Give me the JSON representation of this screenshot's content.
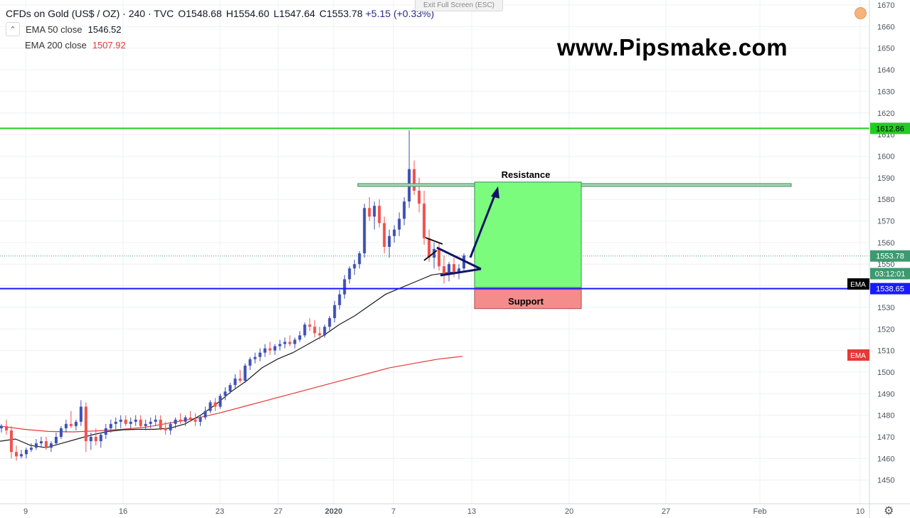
{
  "header": {
    "symbol_title": "CFDs on Gold (US$ / OZ) · 240 · TVC",
    "ohlc": [
      {
        "label": "O",
        "value": "1548.68"
      },
      {
        "label": "H",
        "value": "1554.60"
      },
      {
        "label": "L",
        "value": "1547.64"
      },
      {
        "label": "C",
        "value": "1553.78"
      }
    ],
    "change": "+5.15 (+0.33%)",
    "exit_fullscreen": "Exit Full Screen (ESC)",
    "collapse_icon": "chevron-up-icon",
    "indicators": [
      {
        "label": "EMA 50 close",
        "value": "1546.52",
        "color": "#131722"
      },
      {
        "label": "EMA 200 close",
        "value": "1507.92",
        "color": "#e53935"
      }
    ]
  },
  "watermark": "www.Pipsmake.com",
  "colors": {
    "up": "#3f51b5",
    "down": "#ef5350",
    "ema50": "#1a1a1a",
    "ema200": "#e53935",
    "resistance_line": "#22cc22",
    "support_line": "#1a1aff",
    "target_box": "#7cfc7c",
    "stop_box": "#f48c8c",
    "annotation": "#131366"
  },
  "chart_data": {
    "type": "candlestick",
    "title": "CFDs on Gold (US$ / OZ)",
    "timeframe": "240",
    "ylim": [
      1444,
      1672
    ],
    "y_ticks": [
      1450,
      1460,
      1470,
      1480,
      1490,
      1500,
      1510,
      1520,
      1530,
      1540,
      1550,
      1560,
      1570,
      1580,
      1590,
      1600,
      1610,
      1620,
      1630,
      1640,
      1650,
      1660,
      1670
    ],
    "x_ticks": [
      "9",
      "16",
      "23",
      "27",
      "2020",
      "7",
      "13",
      "20",
      "27",
      "Feb",
      "10"
    ],
    "price_labels": [
      {
        "text": "1612.86",
        "value": 1612.86,
        "bg": "#22cc22",
        "fg": "#000000"
      },
      {
        "text": "1553.78",
        "value": 1553.78,
        "bg": "#3d9a70",
        "fg": "#ffffff"
      },
      {
        "text": "03:12:01",
        "value": 1545.6,
        "bg": "#3d9a70",
        "fg": "#ffffff"
      },
      {
        "text": "1538.65",
        "value": 1538.65,
        "bg": "#1a1aff",
        "fg": "#ffffff"
      }
    ],
    "ema_tags": [
      {
        "text": "EMA",
        "value": 1540.8,
        "bg": "#000000"
      },
      {
        "text": "EMA",
        "value": 1507.9,
        "bg": "#e53935"
      }
    ],
    "horizontal_lines": [
      {
        "name": "resistance-line",
        "value": 1612.86
      },
      {
        "name": "support-line",
        "value": 1538.65
      },
      {
        "name": "last-price-line",
        "value": 1553.78
      }
    ],
    "annotations": {
      "resistance_label": "Resistance",
      "support_label": "Support",
      "resistance_zone": [
        1586.3,
        1587.3
      ],
      "target_box": [
        1539.2,
        1588.0
      ],
      "support_box": [
        1529.4,
        1538.3
      ]
    },
    "candles": [
      [
        1474,
        1476,
        1472,
        1475
      ],
      [
        1475,
        1478,
        1471,
        1473
      ],
      [
        1473,
        1475,
        1460,
        1463
      ],
      [
        1463,
        1466,
        1459,
        1461
      ],
      [
        1461,
        1464,
        1460,
        1462
      ],
      [
        1462,
        1465,
        1460,
        1464
      ],
      [
        1464,
        1467,
        1463,
        1465
      ],
      [
        1465,
        1469,
        1464,
        1467
      ],
      [
        1467,
        1470,
        1465,
        1468
      ],
      [
        1468,
        1470,
        1464,
        1465
      ],
      [
        1465,
        1468,
        1463,
        1467
      ],
      [
        1467,
        1472,
        1466,
        1470
      ],
      [
        1470,
        1475,
        1469,
        1474
      ],
      [
        1474,
        1478,
        1472,
        1476
      ],
      [
        1476,
        1482,
        1474,
        1475
      ],
      [
        1475,
        1478,
        1473,
        1477
      ],
      [
        1477,
        1487,
        1475,
        1484
      ],
      [
        1484,
        1486,
        1463,
        1468
      ],
      [
        1468,
        1472,
        1464,
        1470
      ],
      [
        1470,
        1474,
        1466,
        1468
      ],
      [
        1468,
        1472,
        1465,
        1471
      ],
      [
        1471,
        1476,
        1469,
        1474
      ],
      [
        1474,
        1478,
        1472,
        1476
      ],
      [
        1476,
        1479,
        1473,
        1477
      ],
      [
        1477,
        1480,
        1474,
        1478
      ],
      [
        1478,
        1480,
        1475,
        1476
      ],
      [
        1476,
        1479,
        1474,
        1477
      ],
      [
        1477,
        1480,
        1475,
        1478
      ],
      [
        1478,
        1480,
        1474,
        1475
      ],
      [
        1475,
        1478,
        1473,
        1476
      ],
      [
        1476,
        1479,
        1474,
        1477
      ],
      [
        1477,
        1480,
        1475,
        1478
      ],
      [
        1478,
        1480,
        1473,
        1474
      ],
      [
        1474,
        1477,
        1471,
        1473
      ],
      [
        1473,
        1477,
        1471,
        1476
      ],
      [
        1476,
        1479,
        1474,
        1478
      ],
      [
        1478,
        1481,
        1476,
        1477
      ],
      [
        1477,
        1480,
        1475,
        1479
      ],
      [
        1479,
        1482,
        1477,
        1478
      ],
      [
        1478,
        1481,
        1475,
        1477
      ],
      [
        1477,
        1480,
        1475,
        1479
      ],
      [
        1479,
        1484,
        1478,
        1482
      ],
      [
        1482,
        1487,
        1481,
        1486
      ],
      [
        1486,
        1488,
        1482,
        1484
      ],
      [
        1484,
        1490,
        1483,
        1489
      ],
      [
        1489,
        1493,
        1487,
        1491
      ],
      [
        1491,
        1495,
        1490,
        1494
      ],
      [
        1494,
        1499,
        1492,
        1497
      ],
      [
        1497,
        1501,
        1495,
        1496
      ],
      [
        1496,
        1504,
        1495,
        1503
      ],
      [
        1503,
        1507,
        1501,
        1506
      ],
      [
        1506,
        1509,
        1504,
        1507
      ],
      [
        1507,
        1511,
        1505,
        1509
      ],
      [
        1509,
        1513,
        1507,
        1511
      ],
      [
        1511,
        1514,
        1508,
        1510
      ],
      [
        1510,
        1513,
        1508,
        1512
      ],
      [
        1512,
        1515,
        1510,
        1513
      ],
      [
        1513,
        1516,
        1511,
        1514
      ],
      [
        1514,
        1517,
        1512,
        1513
      ],
      [
        1513,
        1516,
        1511,
        1515
      ],
      [
        1515,
        1519,
        1514,
        1517
      ],
      [
        1517,
        1523,
        1516,
        1522
      ],
      [
        1522,
        1525,
        1519,
        1521
      ],
      [
        1521,
        1524,
        1516,
        1518
      ],
      [
        1518,
        1521,
        1515,
        1517
      ],
      [
        1517,
        1522,
        1516,
        1521
      ],
      [
        1521,
        1526,
        1519,
        1525
      ],
      [
        1525,
        1533,
        1523,
        1531
      ],
      [
        1531,
        1538,
        1529,
        1536
      ],
      [
        1536,
        1545,
        1534,
        1543
      ],
      [
        1543,
        1549,
        1541,
        1548
      ],
      [
        1548,
        1552,
        1545,
        1550
      ],
      [
        1550,
        1556,
        1548,
        1555
      ],
      [
        1555,
        1578,
        1553,
        1576
      ],
      [
        1576,
        1581,
        1570,
        1572
      ],
      [
        1572,
        1579,
        1566,
        1577
      ],
      [
        1577,
        1580,
        1567,
        1569
      ],
      [
        1569,
        1572,
        1555,
        1558
      ],
      [
        1558,
        1566,
        1553,
        1563
      ],
      [
        1563,
        1568,
        1560,
        1566
      ],
      [
        1566,
        1574,
        1563,
        1571
      ],
      [
        1571,
        1581,
        1568,
        1579
      ],
      [
        1579,
        1612,
        1576,
        1594
      ],
      [
        1594,
        1598,
        1582,
        1584
      ],
      [
        1584,
        1590,
        1574,
        1578
      ],
      [
        1578,
        1584,
        1559,
        1562
      ],
      [
        1562,
        1566,
        1551,
        1553
      ],
      [
        1553,
        1560,
        1548,
        1557
      ],
      [
        1557,
        1560,
        1547,
        1549
      ],
      [
        1549,
        1554,
        1541,
        1545
      ],
      [
        1545,
        1551,
        1542,
        1550
      ],
      [
        1550,
        1553,
        1544,
        1546
      ],
      [
        1546,
        1550,
        1543,
        1548
      ],
      [
        1548,
        1555,
        1547,
        1554
      ]
    ],
    "ema50": [
      [
        1466.5,
        1468
      ],
      [
        1467.5,
        1469
      ],
      [
        1465.5,
        1466
      ],
      [
        1464.5,
        1465
      ],
      [
        1466.0,
        1467
      ],
      [
        1468.5,
        1469
      ],
      [
        1470.5,
        1471
      ],
      [
        1472.0,
        1472.5
      ],
      [
        1473.0,
        1473.3
      ],
      [
        1473.5,
        1473.5
      ],
      [
        1474.0,
        1473.5
      ],
      [
        1475.0,
        1474
      ],
      [
        1478.0,
        1476
      ],
      [
        1482.0,
        1480
      ],
      [
        1486.0,
        1485
      ],
      [
        1490.0,
        1491
      ],
      [
        1494.5,
        1496
      ],
      [
        1499.0,
        1502
      ],
      [
        1503.0,
        1506
      ],
      [
        1506.0,
        1509
      ],
      [
        1509.0,
        1513
      ],
      [
        1512.0,
        1517
      ],
      [
        1515.0,
        1522
      ],
      [
        1518.0,
        1526
      ],
      [
        1521.0,
        1531
      ],
      [
        1524.0,
        1536
      ],
      [
        1527.0,
        1539
      ],
      [
        1530.0,
        1542
      ],
      [
        1533.0,
        1545
      ],
      [
        1535.0,
        1546
      ],
      [
        1536.5,
        1546.5
      ]
    ],
    "ema200": [
      [
        1466.5,
        1475
      ],
      [
        1471.0,
        1473.5
      ],
      [
        1476.0,
        1472.5
      ],
      [
        1483.0,
        1472.3
      ],
      [
        1488.5,
        1472.8
      ],
      [
        1493.5,
        1473.5
      ],
      [
        1498.5,
        1474.5
      ],
      [
        1503.5,
        1476.5
      ],
      [
        1508.0,
        1478.5
      ],
      [
        1512.0,
        1481
      ],
      [
        1516.0,
        1484
      ],
      [
        1519.5,
        1487
      ],
      [
        1523.0,
        1490
      ],
      [
        1526.0,
        1493
      ],
      [
        1529.5,
        1496
      ],
      [
        1533.0,
        1499
      ],
      [
        1536.5,
        1502
      ],
      [
        1539.5,
        1504
      ],
      [
        1542.0,
        1506
      ],
      [
        1544.0,
        1507.3
      ]
    ]
  }
}
